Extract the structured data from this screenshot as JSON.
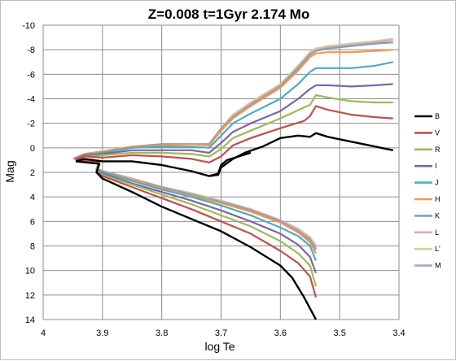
{
  "chart_data": {
    "type": "line",
    "title": "Z=0.008   t=1Gyr   2.174 Mo",
    "xlabel": "log Te",
    "ylabel": "Mag",
    "xlim": [
      4,
      3.4
    ],
    "ylim": [
      14,
      -10
    ],
    "x_reversed": true,
    "y_reversed": true,
    "x_ticks": [
      4,
      3.9,
      3.8,
      3.7,
      3.6,
      3.5,
      3.4
    ],
    "y_ticks": [
      -10,
      -8,
      -6,
      -4,
      -2,
      0,
      2,
      4,
      6,
      8,
      10,
      12,
      14
    ],
    "x_tick_labels": [
      "4",
      "3.9",
      "3.8",
      "3.7",
      "3.6",
      "3.5",
      "3.4"
    ],
    "y_tick_labels": [
      "-10",
      "-8",
      "-6",
      "-4",
      "-2",
      "0",
      "2",
      "4",
      "6",
      "8",
      "10",
      "12",
      "14"
    ],
    "grid": true,
    "legend_position": "right",
    "series": [
      {
        "name": "B",
        "color": "#000000",
        "upper": [
          [
            3.93,
            0.9
          ],
          [
            3.9,
            1.1
          ],
          [
            3.85,
            1.1
          ],
          [
            3.8,
            1.4
          ],
          [
            3.75,
            1.9
          ],
          [
            3.72,
            2.3
          ],
          [
            3.705,
            2.2
          ],
          [
            3.7,
            1.6
          ],
          [
            3.68,
            0.9
          ],
          [
            3.66,
            0.4
          ],
          [
            3.63,
            -0.1
          ],
          [
            3.6,
            -0.8
          ],
          [
            3.57,
            -1.0
          ],
          [
            3.55,
            -0.9
          ],
          [
            3.54,
            -1.2
          ],
          [
            3.52,
            -0.9
          ],
          [
            3.48,
            -0.5
          ],
          [
            3.44,
            -0.1
          ],
          [
            3.41,
            0.2
          ]
        ],
        "lower": [
          [
            3.905,
            1.3
          ],
          [
            3.91,
            2.0
          ],
          [
            3.9,
            2.5
          ],
          [
            3.85,
            3.6
          ],
          [
            3.8,
            4.8
          ],
          [
            3.75,
            5.8
          ],
          [
            3.7,
            6.8
          ],
          [
            3.65,
            8.1
          ],
          [
            3.6,
            9.6
          ],
          [
            3.58,
            10.6
          ],
          [
            3.56,
            12.2
          ],
          [
            3.54,
            14.0
          ]
        ],
        "hook": [
          [
            3.72,
            2.3
          ],
          [
            3.705,
            2.1
          ],
          [
            3.7,
            1.4
          ],
          [
            3.69,
            1.0
          ],
          [
            3.67,
            0.7
          ],
          [
            3.65,
            0.4
          ]
        ]
      },
      {
        "name": "V",
        "color": "#c0504d",
        "upper": [
          [
            3.93,
            0.7
          ],
          [
            3.9,
            0.8
          ],
          [
            3.85,
            0.6
          ],
          [
            3.8,
            0.7
          ],
          [
            3.75,
            0.9
          ],
          [
            3.72,
            1.2
          ],
          [
            3.7,
            0.7
          ],
          [
            3.68,
            -0.2
          ],
          [
            3.65,
            -0.8
          ],
          [
            3.6,
            -1.6
          ],
          [
            3.56,
            -2.2
          ],
          [
            3.55,
            -2.6
          ],
          [
            3.54,
            -3.4
          ],
          [
            3.52,
            -3.1
          ],
          [
            3.48,
            -2.7
          ],
          [
            3.44,
            -2.5
          ],
          [
            3.41,
            -2.4
          ]
        ],
        "lower": [
          [
            3.905,
            1.2
          ],
          [
            3.91,
            1.9
          ],
          [
            3.9,
            2.3
          ],
          [
            3.85,
            3.2
          ],
          [
            3.8,
            4.1
          ],
          [
            3.75,
            5.0
          ],
          [
            3.7,
            6.0
          ],
          [
            3.65,
            7.0
          ],
          [
            3.6,
            8.4
          ],
          [
            3.57,
            9.4
          ],
          [
            3.55,
            10.5
          ],
          [
            3.54,
            12.2
          ]
        ],
        "hook": []
      },
      {
        "name": "R",
        "color": "#9bbb59",
        "upper": [
          [
            3.93,
            0.7
          ],
          [
            3.9,
            0.6
          ],
          [
            3.85,
            0.4
          ],
          [
            3.8,
            0.4
          ],
          [
            3.75,
            0.5
          ],
          [
            3.72,
            0.7
          ],
          [
            3.7,
            0.1
          ],
          [
            3.68,
            -0.8
          ],
          [
            3.65,
            -1.4
          ],
          [
            3.6,
            -2.4
          ],
          [
            3.56,
            -3.3
          ],
          [
            3.55,
            -3.5
          ],
          [
            3.54,
            -4.3
          ],
          [
            3.52,
            -4.1
          ],
          [
            3.48,
            -3.8
          ],
          [
            3.44,
            -3.7
          ],
          [
            3.41,
            -3.7
          ]
        ],
        "lower": [
          [
            3.905,
            1.2
          ],
          [
            3.91,
            1.8
          ],
          [
            3.9,
            2.2
          ],
          [
            3.85,
            3.0
          ],
          [
            3.8,
            3.8
          ],
          [
            3.75,
            4.6
          ],
          [
            3.7,
            5.5
          ],
          [
            3.65,
            6.4
          ],
          [
            3.6,
            7.6
          ],
          [
            3.57,
            8.6
          ],
          [
            3.55,
            9.6
          ],
          [
            3.54,
            11.3
          ]
        ],
        "hook": []
      },
      {
        "name": "I",
        "color": "#8064a2",
        "upper": [
          [
            3.93,
            0.6
          ],
          [
            3.9,
            0.5
          ],
          [
            3.85,
            0.2
          ],
          [
            3.8,
            0.2
          ],
          [
            3.75,
            0.2
          ],
          [
            3.72,
            0.4
          ],
          [
            3.7,
            -0.4
          ],
          [
            3.68,
            -1.3
          ],
          [
            3.65,
            -2.0
          ],
          [
            3.6,
            -3.0
          ],
          [
            3.57,
            -4.0
          ],
          [
            3.55,
            -4.8
          ],
          [
            3.54,
            -5.1
          ],
          [
            3.52,
            -5.1
          ],
          [
            3.48,
            -5.0
          ],
          [
            3.44,
            -5.1
          ],
          [
            3.41,
            -5.2
          ]
        ],
        "lower": [
          [
            3.905,
            1.2
          ],
          [
            3.91,
            1.8
          ],
          [
            3.9,
            2.1
          ],
          [
            3.85,
            2.9
          ],
          [
            3.8,
            3.6
          ],
          [
            3.75,
            4.3
          ],
          [
            3.7,
            5.1
          ],
          [
            3.65,
            6.0
          ],
          [
            3.6,
            7.0
          ],
          [
            3.57,
            7.9
          ],
          [
            3.55,
            8.9
          ],
          [
            3.54,
            10.2
          ]
        ],
        "hook": []
      },
      {
        "name": "J",
        "color": "#4bacc6",
        "upper": [
          [
            3.93,
            0.6
          ],
          [
            3.9,
            0.4
          ],
          [
            3.85,
            0.0
          ],
          [
            3.8,
            -0.1
          ],
          [
            3.75,
            -0.1
          ],
          [
            3.72,
            0.0
          ],
          [
            3.7,
            -1.0
          ],
          [
            3.68,
            -2.0
          ],
          [
            3.65,
            -2.8
          ],
          [
            3.6,
            -4.0
          ],
          [
            3.57,
            -5.2
          ],
          [
            3.55,
            -6.2
          ],
          [
            3.54,
            -6.5
          ],
          [
            3.52,
            -6.5
          ],
          [
            3.48,
            -6.5
          ],
          [
            3.44,
            -6.7
          ],
          [
            3.41,
            -7.0
          ]
        ],
        "lower": [
          [
            3.905,
            1.1
          ],
          [
            3.91,
            1.7
          ],
          [
            3.9,
            2.0
          ],
          [
            3.85,
            2.7
          ],
          [
            3.8,
            3.4
          ],
          [
            3.75,
            4.0
          ],
          [
            3.7,
            4.7
          ],
          [
            3.65,
            5.5
          ],
          [
            3.6,
            6.5
          ],
          [
            3.57,
            7.2
          ],
          [
            3.55,
            8.0
          ],
          [
            3.54,
            9.2
          ]
        ],
        "hook": []
      },
      {
        "name": "H",
        "color": "#f79646",
        "upper": [
          [
            3.93,
            0.5
          ],
          [
            3.9,
            0.3
          ],
          [
            3.85,
            -0.1
          ],
          [
            3.8,
            -0.2
          ],
          [
            3.75,
            -0.3
          ],
          [
            3.72,
            -0.2
          ],
          [
            3.7,
            -1.4
          ],
          [
            3.68,
            -2.4
          ],
          [
            3.65,
            -3.4
          ],
          [
            3.6,
            -4.9
          ],
          [
            3.57,
            -6.3
          ],
          [
            3.55,
            -7.4
          ],
          [
            3.54,
            -7.7
          ],
          [
            3.52,
            -7.8
          ],
          [
            3.48,
            -7.8
          ],
          [
            3.44,
            -7.9
          ],
          [
            3.41,
            -8.0
          ]
        ],
        "lower": [
          [
            3.905,
            1.1
          ],
          [
            3.91,
            1.7
          ],
          [
            3.9,
            2.0
          ],
          [
            3.85,
            2.6
          ],
          [
            3.8,
            3.3
          ],
          [
            3.75,
            3.9
          ],
          [
            3.7,
            4.5
          ],
          [
            3.65,
            5.2
          ],
          [
            3.6,
            6.1
          ],
          [
            3.57,
            6.9
          ],
          [
            3.55,
            7.7
          ],
          [
            3.54,
            8.6
          ]
        ],
        "hook": []
      },
      {
        "name": "K",
        "color": "#7f9ec9",
        "upper": [
          [
            3.93,
            0.5
          ],
          [
            3.9,
            0.3
          ],
          [
            3.85,
            -0.1
          ],
          [
            3.8,
            -0.3
          ],
          [
            3.75,
            -0.3
          ],
          [
            3.72,
            -0.3
          ],
          [
            3.7,
            -1.5
          ],
          [
            3.68,
            -2.5
          ],
          [
            3.65,
            -3.5
          ],
          [
            3.6,
            -5.0
          ],
          [
            3.57,
            -6.5
          ],
          [
            3.55,
            -7.6
          ],
          [
            3.54,
            -7.9
          ],
          [
            3.52,
            -8.1
          ],
          [
            3.48,
            -8.3
          ],
          [
            3.44,
            -8.5
          ],
          [
            3.41,
            -8.6
          ]
        ],
        "lower": [
          [
            3.905,
            1.1
          ],
          [
            3.91,
            1.7
          ],
          [
            3.9,
            1.9
          ],
          [
            3.85,
            2.6
          ],
          [
            3.8,
            3.2
          ],
          [
            3.75,
            3.8
          ],
          [
            3.7,
            4.4
          ],
          [
            3.65,
            5.1
          ],
          [
            3.6,
            6.0
          ],
          [
            3.57,
            6.8
          ],
          [
            3.55,
            7.5
          ],
          [
            3.54,
            8.3
          ]
        ],
        "hook": []
      },
      {
        "name": "L",
        "color": "#e6a5a5",
        "upper": [
          [
            3.93,
            0.5
          ],
          [
            3.9,
            0.3
          ],
          [
            3.85,
            -0.1
          ],
          [
            3.8,
            -0.3
          ],
          [
            3.75,
            -0.3
          ],
          [
            3.72,
            -0.3
          ],
          [
            3.7,
            -1.6
          ],
          [
            3.68,
            -2.6
          ],
          [
            3.65,
            -3.6
          ],
          [
            3.6,
            -5.1
          ],
          [
            3.57,
            -6.6
          ],
          [
            3.55,
            -7.7
          ],
          [
            3.54,
            -8.0
          ],
          [
            3.52,
            -8.2
          ],
          [
            3.48,
            -8.4
          ],
          [
            3.44,
            -8.6
          ],
          [
            3.41,
            -8.8
          ]
        ],
        "lower": [
          [
            3.905,
            1.1
          ],
          [
            3.91,
            1.7
          ],
          [
            3.9,
            1.9
          ],
          [
            3.85,
            2.5
          ],
          [
            3.8,
            3.2
          ],
          [
            3.75,
            3.8
          ],
          [
            3.7,
            4.4
          ],
          [
            3.65,
            5.0
          ],
          [
            3.6,
            5.9
          ],
          [
            3.57,
            6.7
          ],
          [
            3.55,
            7.4
          ],
          [
            3.54,
            8.2
          ]
        ],
        "hook": []
      },
      {
        "name": "L'",
        "color": "#c3d69b",
        "upper": [
          [
            3.93,
            0.5
          ],
          [
            3.9,
            0.3
          ],
          [
            3.85,
            -0.1
          ],
          [
            3.8,
            -0.3
          ],
          [
            3.75,
            -0.3
          ],
          [
            3.72,
            -0.3
          ],
          [
            3.7,
            -1.6
          ],
          [
            3.68,
            -2.7
          ],
          [
            3.65,
            -3.7
          ],
          [
            3.6,
            -5.2
          ],
          [
            3.57,
            -6.7
          ],
          [
            3.55,
            -7.8
          ],
          [
            3.54,
            -8.1
          ],
          [
            3.52,
            -8.3
          ],
          [
            3.48,
            -8.5
          ],
          [
            3.44,
            -8.7
          ],
          [
            3.41,
            -8.9
          ]
        ],
        "lower": [
          [
            3.905,
            1.1
          ],
          [
            3.91,
            1.7
          ],
          [
            3.9,
            1.9
          ],
          [
            3.85,
            2.5
          ],
          [
            3.8,
            3.2
          ],
          [
            3.75,
            3.7
          ],
          [
            3.7,
            4.3
          ],
          [
            3.65,
            5.0
          ],
          [
            3.6,
            5.9
          ],
          [
            3.57,
            6.6
          ],
          [
            3.55,
            7.3
          ],
          [
            3.54,
            8.1
          ]
        ],
        "hook": []
      },
      {
        "name": "M",
        "color": "#b3a2c7",
        "upper": [
          [
            3.93,
            0.5
          ],
          [
            3.9,
            0.3
          ],
          [
            3.85,
            -0.1
          ],
          [
            3.8,
            -0.3
          ],
          [
            3.75,
            -0.3
          ],
          [
            3.72,
            -0.3
          ],
          [
            3.7,
            -1.6
          ],
          [
            3.68,
            -2.7
          ],
          [
            3.65,
            -3.7
          ],
          [
            3.6,
            -5.2
          ],
          [
            3.57,
            -6.7
          ],
          [
            3.55,
            -7.8
          ],
          [
            3.54,
            -8.1
          ],
          [
            3.52,
            -8.2
          ],
          [
            3.48,
            -8.4
          ],
          [
            3.44,
            -8.5
          ],
          [
            3.41,
            -8.6
          ]
        ],
        "lower": [
          [
            3.905,
            1.1
          ],
          [
            3.91,
            1.7
          ],
          [
            3.9,
            1.9
          ],
          [
            3.85,
            2.5
          ],
          [
            3.8,
            3.2
          ],
          [
            3.75,
            3.7
          ],
          [
            3.7,
            4.3
          ],
          [
            3.65,
            5.0
          ],
          [
            3.6,
            5.9
          ],
          [
            3.57,
            6.6
          ],
          [
            3.55,
            7.3
          ],
          [
            3.54,
            8.0
          ]
        ],
        "hook": []
      }
    ]
  }
}
